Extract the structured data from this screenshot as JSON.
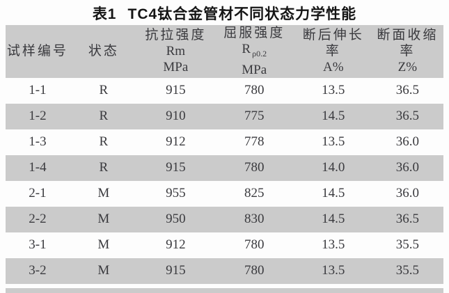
{
  "caption": {
    "label": "表1",
    "title": "TC4钛合金管材不同状态力学性能"
  },
  "table": {
    "columns": [
      {
        "lines": [
          "试样编号"
        ]
      },
      {
        "lines": [
          "状态"
        ]
      },
      {
        "lines": [
          "抗拉强度",
          "Rm",
          "MPa"
        ]
      },
      {
        "lines": [
          "屈服强度",
          "R|ρ0.2",
          "MPa"
        ]
      },
      {
        "lines": [
          "断后伸长",
          "率",
          "A%"
        ]
      },
      {
        "lines": [
          "断面收缩",
          "率",
          "Z%"
        ]
      }
    ],
    "rows": [
      [
        "1-1",
        "R",
        "915",
        "780",
        "13.5",
        "36.5"
      ],
      [
        "1-2",
        "R",
        "910",
        "775",
        "14.5",
        "36.5"
      ],
      [
        "1-3",
        "R",
        "912",
        "778",
        "13.5",
        "36.0"
      ],
      [
        "1-4",
        "R",
        "915",
        "780",
        "14.0",
        "36.0"
      ],
      [
        "2-1",
        "M",
        "955",
        "825",
        "14.5",
        "36.0"
      ],
      [
        "2-2",
        "M",
        "950",
        "830",
        "14.5",
        "36.5"
      ],
      [
        "3-1",
        "M",
        "912",
        "780",
        "13.5",
        "35.5"
      ],
      [
        "3-2",
        "M",
        "915",
        "780",
        "13.5",
        "35.5"
      ]
    ]
  },
  "colors": {
    "band": "#cbcbcb",
    "text": "#3a3a3e",
    "title": "#151515",
    "background": "#fdfdfd"
  }
}
